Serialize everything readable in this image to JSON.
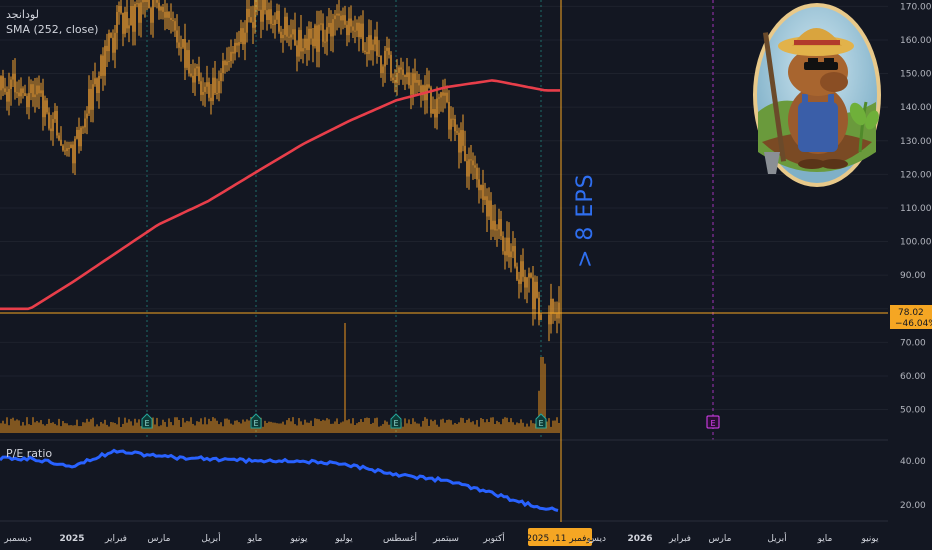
{
  "header": {
    "symbol_title": "لودانجد",
    "sma_label": "SMA (252, close)",
    "pe_label": "P/E ratio"
  },
  "annotation": {
    "text": "> 8 EPS"
  },
  "price_axis": {
    "ticks": [
      "170.00",
      "160.00",
      "150.00",
      "140.00",
      "130.00",
      "120.00",
      "110.00",
      "100.00",
      "90.00",
      "80.00",
      "70.00",
      "60.00",
      "50.00"
    ],
    "tick_values": [
      170,
      160,
      150,
      140,
      130,
      120,
      110,
      100,
      90,
      80,
      70,
      60,
      50
    ],
    "current_price": "78.02",
    "current_change": "−46.04%"
  },
  "pe_axis": {
    "ticks": [
      "40.00",
      "20.00"
    ],
    "tick_values": [
      40,
      20
    ]
  },
  "x_axis": {
    "labels": [
      "ديسمبر",
      "2025",
      "فبراير",
      "مارس",
      "أبريل",
      "مايو",
      "يونيو",
      "يوليو",
      "أغسطس",
      "سبتمبر",
      "أكتوبر",
      "نوفمبر 11, 2025",
      "ديس",
      "2026",
      "فبراير",
      "مارس",
      "أبريل",
      "مايو",
      "يونيو"
    ],
    "bold": [
      false,
      true,
      false,
      false,
      false,
      false,
      false,
      false,
      false,
      false,
      false,
      false,
      false,
      true,
      false,
      false,
      false,
      false,
      false
    ],
    "highlighted_index": 11
  },
  "earnings_markers": {
    "label": "E",
    "past_count": 4,
    "upcoming_count": 1
  },
  "colors": {
    "background": "#131722",
    "candle": "#f0a030",
    "sma": "#e83e4a",
    "pe_line": "#2962ff",
    "annotation": "#2f6ff0",
    "crosshair": "#f5a623",
    "earnings_past": "#26a69a",
    "earnings_future": "#e040fb"
  },
  "chart_data": {
    "type": "line",
    "series": [
      {
        "name": "Price",
        "x": [
          "Dec",
          "Jan",
          "Feb",
          "Mar",
          "Apr",
          "May",
          "Jun",
          "Jul",
          "Aug",
          "Sep",
          "Oct",
          "Nov 11"
        ],
        "values": [
          145,
          128,
          165,
          171,
          143,
          171,
          158,
          165,
          150,
          139,
          105,
          78
        ]
      },
      {
        "name": "SMA (252, close)",
        "x": [
          "Dec",
          "Jan",
          "Feb",
          "Mar",
          "Apr",
          "May",
          "Jun",
          "Jul",
          "Aug",
          "Sep",
          "Oct",
          "Nov 11"
        ],
        "values": [
          80,
          88,
          97,
          105,
          112,
          121,
          129,
          136,
          142,
          146,
          148,
          145
        ]
      },
      {
        "name": "P/E ratio",
        "x": [
          "Dec",
          "Jan",
          "Feb",
          "Mar",
          "Apr",
          "May",
          "Jun",
          "Jul",
          "Aug",
          "Sep",
          "Oct",
          "Nov 11"
        ],
        "values": [
          41,
          38,
          45,
          42,
          41,
          40,
          40,
          38,
          34,
          31,
          25,
          18
        ]
      }
    ],
    "ylim": [
      48,
      173
    ]
  }
}
